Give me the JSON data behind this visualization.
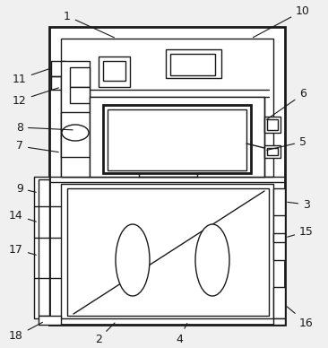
{
  "bg": "#f0f0f0",
  "lc": "#1a1a1a",
  "lw": 1.0,
  "lw_thick": 2.0,
  "fs": 9,
  "label_color": "#1a1a1a"
}
